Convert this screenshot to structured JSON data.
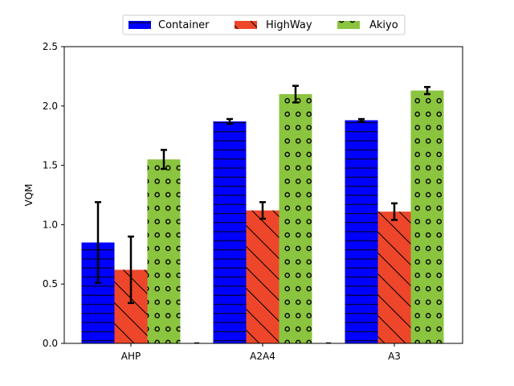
{
  "chart_data": {
    "type": "bar",
    "title": "",
    "xlabel": "",
    "ylabel": "VQM",
    "ylim": [
      0,
      2.5
    ],
    "yticks": [
      0.0,
      0.5,
      1.0,
      1.5,
      2.0,
      2.5
    ],
    "ytick_labels": [
      "0.0",
      "0.5",
      "1.0",
      "1.5",
      "2.0",
      "2.5"
    ],
    "categories": [
      "AHP",
      "A2A4",
      "A3"
    ],
    "legend_position": "top-center",
    "grid": false,
    "series": [
      {
        "name": "Container",
        "color": "#0000ff",
        "hatch": "horizontal-lines",
        "values": [
          0.85,
          1.87,
          1.88
        ],
        "errors": [
          0.34,
          0.02,
          0.01
        ]
      },
      {
        "name": "HighWay",
        "color": "#ee462a",
        "hatch": "diagonal-lines",
        "values": [
          0.62,
          1.12,
          1.11
        ],
        "errors": [
          0.28,
          0.07,
          0.07
        ]
      },
      {
        "name": "Akiyo",
        "color": "#8bc43f",
        "hatch": "circles",
        "values": [
          1.55,
          2.1,
          2.13
        ],
        "errors": [
          0.08,
          0.07,
          0.03
        ]
      }
    ]
  }
}
